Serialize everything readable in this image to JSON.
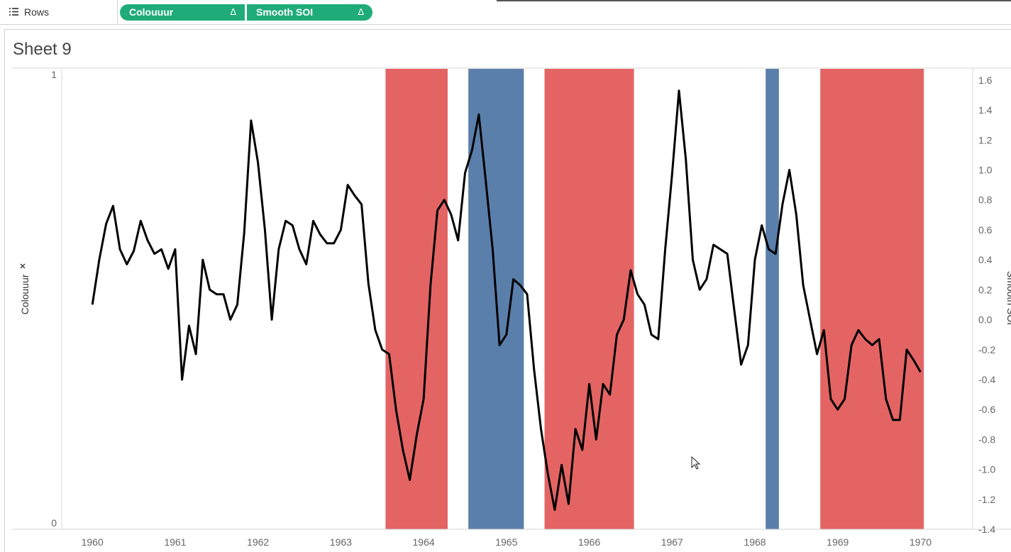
{
  "shelf": {
    "label": "Rows",
    "pills": [
      {
        "label": "Colouuur",
        "delta": "Δ"
      },
      {
        "label": "Smooth SOI",
        "delta": "Δ"
      }
    ]
  },
  "sheet": {
    "title": "Sheet 9"
  },
  "colors": {
    "pill": "#1fac78",
    "red_band": "#e46464",
    "blue_band": "#5b7fab",
    "line": "#000000"
  },
  "chart_data": {
    "type": "line",
    "left_axis": {
      "title": "Colouuur",
      "ticks": [
        "0",
        "1"
      ],
      "range": [
        0,
        1
      ]
    },
    "right_axis": {
      "title": "Smooth SOI",
      "ticks": [
        "1.6",
        "1.4",
        "1.2",
        "1.0",
        "0.8",
        "0.6",
        "0.4",
        "0.2",
        "0.0",
        "-0.2",
        "-0.4",
        "-0.6",
        "-0.8",
        "-1.0",
        "-1.2",
        "-1.4"
      ],
      "range": [
        -1.4,
        1.68
      ]
    },
    "x_axis": {
      "ticks": [
        "1960",
        "1961",
        "1962",
        "1963",
        "1964",
        "1965",
        "1966",
        "1967",
        "1968",
        "1969",
        "1970"
      ],
      "range": [
        1959.63,
        1970.63
      ]
    },
    "bands": [
      {
        "color": "red",
        "start": 1963.54,
        "end": 1964.29,
        "value": 1
      },
      {
        "color": "blue",
        "start": 1964.54,
        "end": 1965.21,
        "value": 1
      },
      {
        "color": "red",
        "start": 1965.46,
        "end": 1966.54,
        "value": 1
      },
      {
        "color": "blue",
        "start": 1968.13,
        "end": 1968.29,
        "value": 1
      },
      {
        "color": "red",
        "start": 1968.79,
        "end": 1970.04,
        "value": 1
      }
    ],
    "series": [
      {
        "values": [
          0.1,
          0.4,
          0.64,
          0.76,
          0.47,
          0.37,
          0.46,
          0.66,
          0.53,
          0.44,
          0.47,
          0.34,
          0.47,
          -0.4,
          -0.04,
          -0.23,
          0.4,
          0.2,
          0.17,
          0.17,
          0.0,
          0.1,
          0.58,
          1.33,
          1.05,
          0.6,
          0.0,
          0.47,
          0.66,
          0.63,
          0.47,
          0.37,
          0.66,
          0.57,
          0.51,
          0.51,
          0.6,
          0.9,
          0.83,
          0.77,
          0.24,
          -0.07,
          -0.2,
          -0.23,
          -0.6,
          -0.87,
          -1.07,
          -0.77,
          -0.53,
          0.23,
          0.73,
          0.8,
          0.7,
          0.53,
          0.98,
          1.13,
          1.37,
          0.93,
          0.47,
          -0.17,
          -0.1,
          0.27,
          0.23,
          0.17,
          -0.33,
          -0.73,
          -1.03,
          -1.27,
          -0.97,
          -1.23,
          -0.73,
          -0.87,
          -0.43,
          -0.8,
          -0.43,
          -0.5,
          -0.1,
          0.0,
          0.33,
          0.17,
          0.1,
          -0.1,
          -0.13,
          0.47,
          0.97,
          1.53,
          1.07,
          0.4,
          0.2,
          0.27,
          0.5,
          0.47,
          0.44,
          0.07,
          -0.3,
          -0.17,
          0.4,
          0.63,
          0.47,
          0.44,
          0.77,
          1.0,
          0.7,
          0.23,
          0.0,
          -0.23,
          -0.07,
          -0.53,
          -0.6,
          -0.53,
          -0.17,
          -0.07,
          -0.13,
          -0.17,
          -0.13,
          -0.53,
          -0.67,
          -0.67,
          -0.2,
          -0.27,
          -0.35
        ]
      }
    ]
  }
}
